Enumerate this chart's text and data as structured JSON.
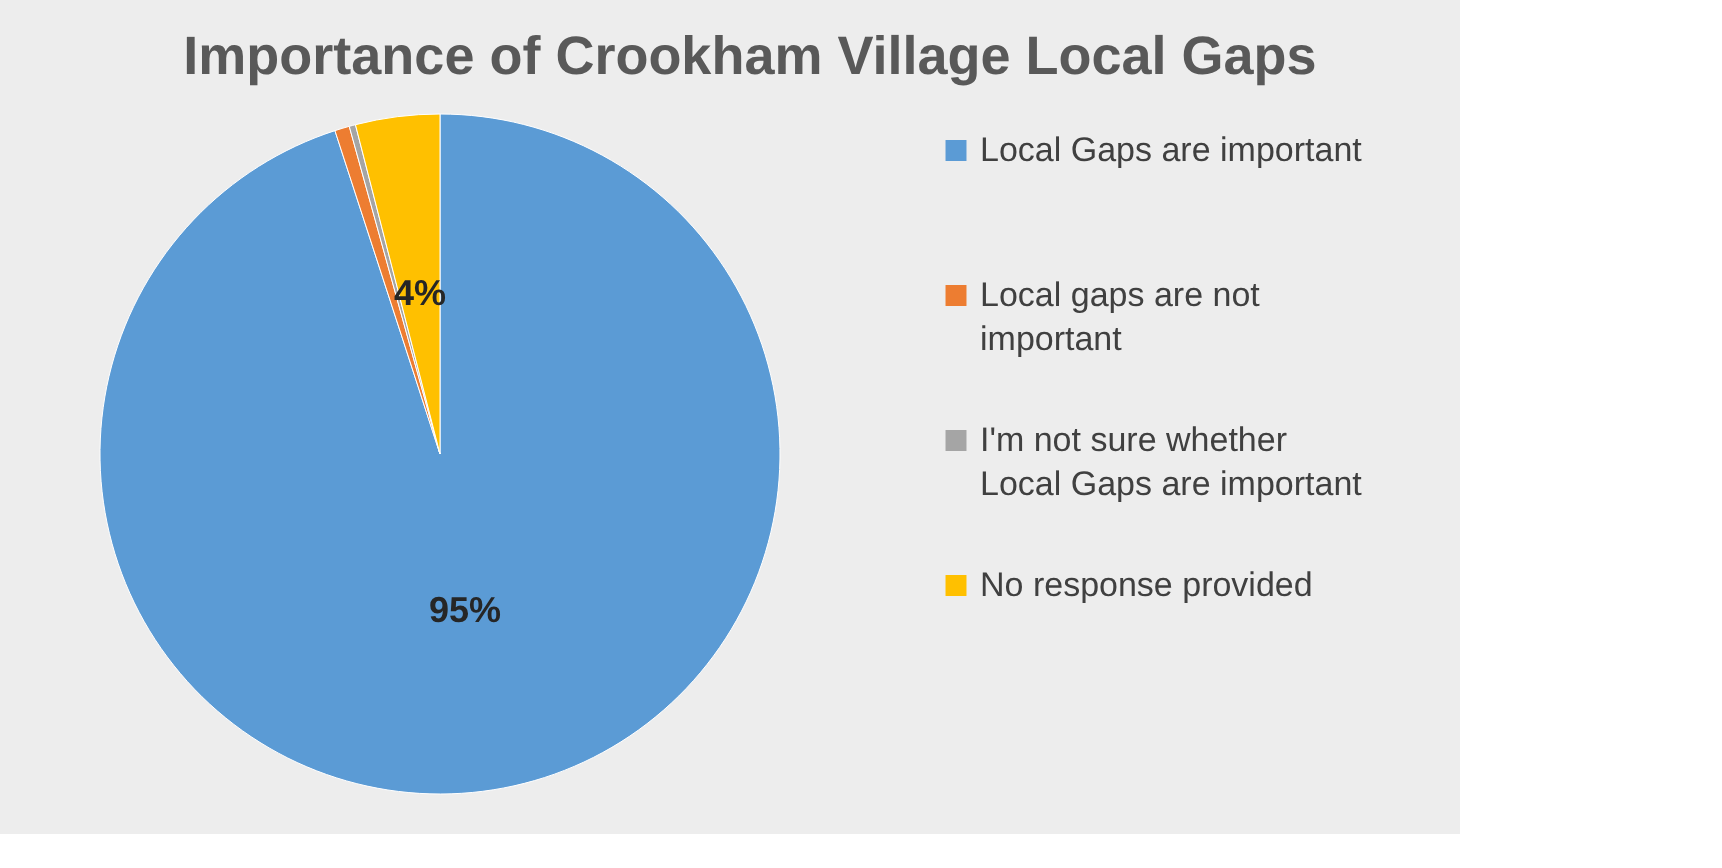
{
  "chart_data": {
    "type": "pie",
    "title": "Importance of Crookham Village Local Gaps",
    "categories": [
      "Local Gaps are important",
      "Local gaps are not important",
      "I'm not sure whether Local Gaps are important",
      "No response provided"
    ],
    "values": [
      95,
      0.7,
      0.3,
      4
    ],
    "colors": [
      "#5b9bd5",
      "#ed7d31",
      "#a5a5a5",
      "#ffc000"
    ],
    "value_labels": [
      "95%",
      null,
      null,
      "4%"
    ],
    "legend": "right"
  }
}
